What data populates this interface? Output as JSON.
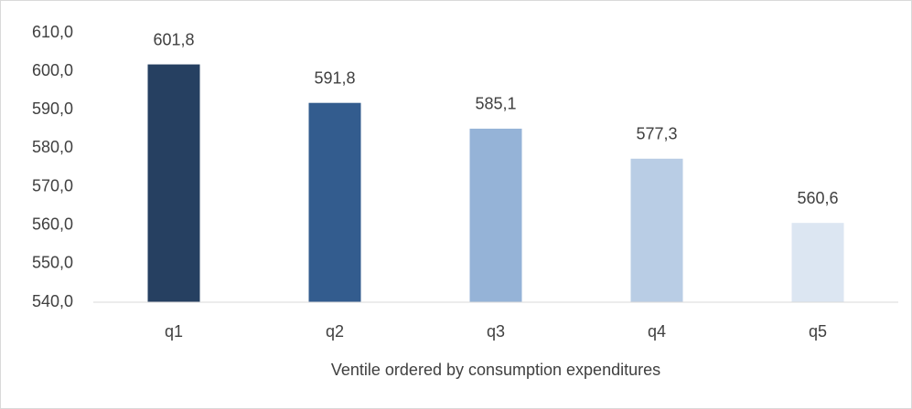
{
  "chart_data": {
    "type": "bar",
    "x_label": "Ventile ordered by consumption expenditures",
    "categories": [
      "q1",
      "q2",
      "q3",
      "q4",
      "q5"
    ],
    "values": [
      601.8,
      591.8,
      585.1,
      577.3,
      560.6
    ],
    "value_labels": [
      "601,8",
      "591,8",
      "585,1",
      "577,3",
      "560,6"
    ],
    "colors": [
      "#264061",
      "#335c8e",
      "#95b3d7",
      "#b9cde5",
      "#dce6f2"
    ],
    "ylim": [
      540,
      610
    ],
    "yticks": [
      {
        "value": 540,
        "label": "540,0"
      },
      {
        "value": 550,
        "label": "550,0"
      },
      {
        "value": 560,
        "label": "560,0"
      },
      {
        "value": 570,
        "label": "570,0"
      },
      {
        "value": 580,
        "label": "580,0"
      },
      {
        "value": 590,
        "label": "590,0"
      },
      {
        "value": 600,
        "label": "600,0"
      },
      {
        "value": 610,
        "label": "610,0"
      }
    ],
    "grid": false
  }
}
